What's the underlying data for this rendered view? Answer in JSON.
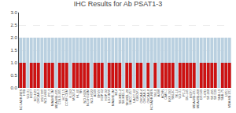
{
  "chart_data": {
    "type": "bar",
    "title": "IHC Results for Ab PSAT1-3",
    "categories": [
      "NCI-ADR-RES",
      "HTB",
      "UO-31",
      "MCF7",
      "NCI-H23",
      "OVCAR-3",
      "HS 578T",
      "NCI-H460",
      "PC-3",
      "MALME-3M",
      "MDA-MB-435",
      "COLO-205",
      "HCT-15",
      "CCRF-CEM",
      "K-562",
      "MOLT-4",
      "HL-60",
      "SR",
      "NCI-H226",
      "NCI-H322M",
      "NCI-H522",
      "A549",
      "EKVX",
      "HOP-62",
      "HOP-92",
      "LOX IMVI",
      "MALME-3M",
      "M14",
      "SK-MEL-2",
      "SK-MEL-5",
      "SK-MEL-28",
      "UACC-257",
      "UACC-62",
      "IGROV1",
      "OVCAR-4",
      "OVCAR-5",
      "OVCAR-8",
      "NCI/ADR-RES",
      "786-0",
      "A498",
      "ACHN",
      "CAKI-1",
      "RXF-393",
      "SN12C",
      "TK-10",
      "UO-31",
      "PC-3",
      "DU-145",
      "MCF7",
      "MDA-MB-231",
      "MDA-MB-468",
      "BT-549",
      "T-47D",
      "SF-268",
      "SF-295",
      "SF-539",
      "SNB-19",
      "SNB-75",
      "U251",
      "MDA MB 231"
    ],
    "series": [
      {
        "color": "#bad0e0",
        "values": [
          2,
          2,
          2,
          2,
          2,
          2,
          2,
          2,
          2,
          2,
          2,
          2,
          2,
          2,
          2,
          2,
          2,
          2,
          2,
          2,
          2,
          2,
          2,
          2,
          2,
          2,
          2,
          2,
          2,
          2,
          2,
          2,
          2,
          2,
          2,
          2,
          2,
          2,
          2,
          2,
          2,
          2,
          2,
          2,
          2,
          2,
          2,
          2,
          2,
          2,
          2,
          2,
          2,
          2,
          2,
          2,
          2,
          2,
          2,
          2
        ]
      },
      {
        "color": "#cc1111",
        "values": [
          1,
          1,
          0,
          1,
          1,
          1,
          0,
          1,
          1,
          1,
          0,
          1,
          1,
          1,
          0,
          1,
          1,
          1,
          1,
          1,
          0,
          1,
          1,
          1,
          0,
          1,
          1,
          1,
          1,
          0,
          1,
          1,
          0,
          1,
          1,
          0,
          1,
          0,
          1,
          0,
          1,
          1,
          1,
          1,
          0,
          1,
          1,
          1,
          1,
          1,
          0,
          1,
          1,
          1,
          1,
          1,
          0,
          1,
          1,
          1
        ]
      }
    ],
    "stacked": false,
    "ylim": [
      0,
      3.0
    ],
    "yticks": [
      {
        "value": 0.0,
        "label": "0.0"
      },
      0.5,
      {
        "value": 1.0,
        "label": "1.0"
      },
      1.5,
      {
        "value": 2.0,
        "label": "2.0"
      },
      2.5,
      {
        "value": 3.0,
        "label": "3.0"
      }
    ],
    "grid": true
  }
}
